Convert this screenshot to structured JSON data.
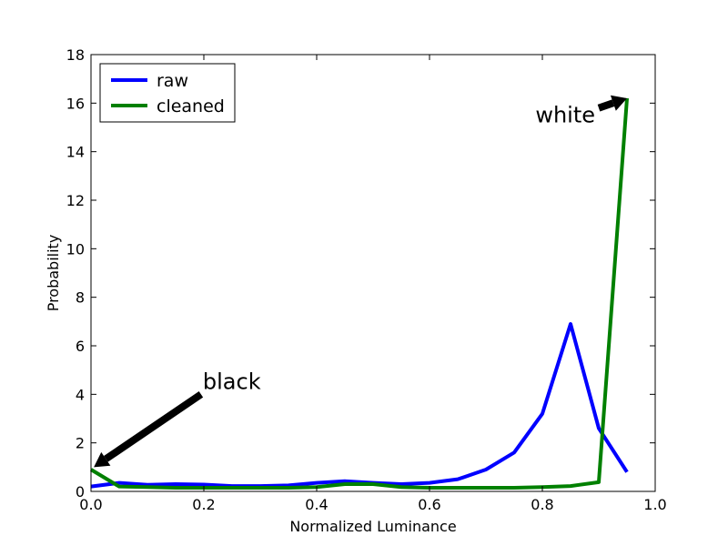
{
  "chart_data": {
    "type": "line",
    "xlabel": "Normalized Luminance",
    "ylabel": "Probability",
    "xlim": [
      0.0,
      1.0
    ],
    "ylim": [
      0,
      18
    ],
    "x_ticks": [
      "0.0",
      "0.2",
      "0.4",
      "0.6",
      "0.8",
      "1.0"
    ],
    "y_ticks": [
      "0",
      "2",
      "4",
      "6",
      "8",
      "10",
      "12",
      "14",
      "16",
      "18"
    ],
    "x": [
      0.0,
      0.05,
      0.1,
      0.15,
      0.2,
      0.25,
      0.3,
      0.35,
      0.4,
      0.45,
      0.5,
      0.55,
      0.6,
      0.65,
      0.7,
      0.75,
      0.8,
      0.85,
      0.9,
      0.95
    ],
    "series": [
      {
        "name": "raw",
        "color": "#0000ff",
        "values": [
          0.2,
          0.35,
          0.27,
          0.3,
          0.28,
          0.22,
          0.22,
          0.25,
          0.35,
          0.42,
          0.35,
          0.3,
          0.35,
          0.5,
          0.9,
          1.6,
          3.2,
          6.9,
          2.6,
          0.8
        ]
      },
      {
        "name": "cleaned",
        "color": "#008000",
        "values": [
          0.9,
          0.2,
          0.18,
          0.15,
          0.15,
          0.15,
          0.15,
          0.15,
          0.18,
          0.3,
          0.3,
          0.18,
          0.15,
          0.15,
          0.15,
          0.15,
          0.18,
          0.22,
          0.38,
          16.2
        ]
      }
    ],
    "legend": {
      "position": "top-left"
    },
    "grid": false,
    "annotations": [
      {
        "text": "black",
        "xytext": [
          0.195,
          4.0
        ],
        "xy": [
          0.005,
          1.0
        ]
      },
      {
        "text": "white",
        "xytext": [
          0.9,
          15.8
        ],
        "xy": [
          0.95,
          16.2
        ]
      }
    ]
  }
}
